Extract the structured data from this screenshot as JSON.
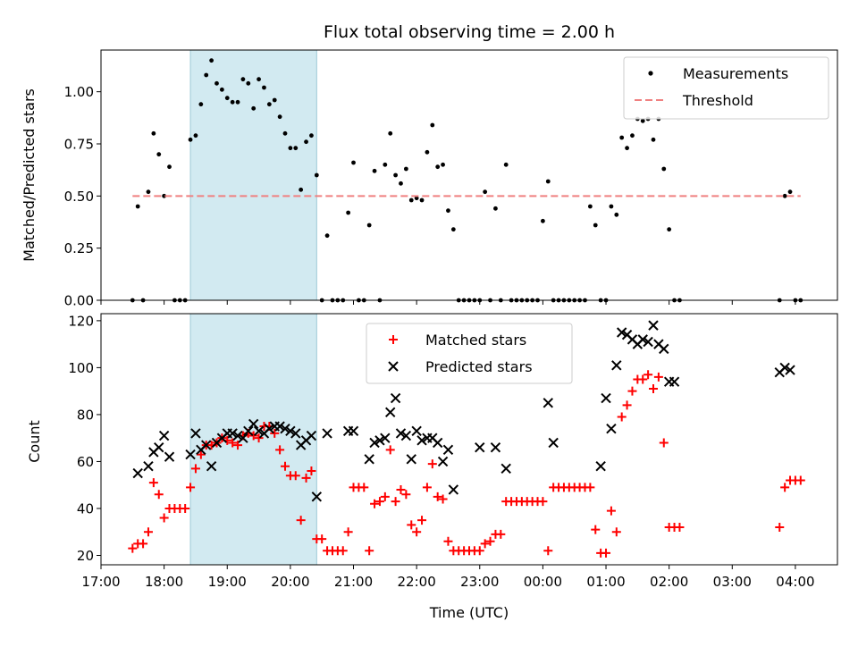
{
  "chart_data": [
    {
      "type": "scatter",
      "title": "Flux total observing time = 2.00 h",
      "xlabel": "",
      "ylabel": "Matched/Predicted stars",
      "ylim": [
        0,
        1.2
      ],
      "xlim": [
        "17:00",
        "04:40"
      ],
      "yticks": [
        "0.00",
        "0.25",
        "0.50",
        "0.75",
        "1.00"
      ],
      "grid": false,
      "legend": "top-right",
      "shaded_region": {
        "from": "18:25",
        "to": "20:25",
        "color": "#add8e6"
      },
      "series": [
        {
          "name": "Measurements",
          "marker": "dot",
          "color": "#000000",
          "x": [
            "17:30",
            "17:35",
            "17:40",
            "17:45",
            "17:50",
            "17:55",
            "18:00",
            "18:05",
            "18:10",
            "18:15",
            "18:20",
            "18:25",
            "18:30",
            "18:35",
            "18:40",
            "18:45",
            "18:50",
            "18:55",
            "19:00",
            "19:05",
            "19:10",
            "19:15",
            "19:20",
            "19:25",
            "19:30",
            "19:35",
            "19:40",
            "19:45",
            "19:50",
            "19:55",
            "20:00",
            "20:05",
            "20:10",
            "20:15",
            "20:20",
            "20:25",
            "20:30",
            "20:35",
            "20:40",
            "20:45",
            "20:50",
            "20:55",
            "21:00",
            "21:05",
            "21:10",
            "21:15",
            "21:20",
            "21:25",
            "21:30",
            "21:35",
            "21:40",
            "21:45",
            "21:50",
            "21:55",
            "22:00",
            "22:05",
            "22:10",
            "22:15",
            "22:20",
            "22:25",
            "22:30",
            "22:35",
            "22:40",
            "22:45",
            "22:50",
            "22:55",
            "23:00",
            "23:05",
            "23:10",
            "23:15",
            "23:20",
            "23:25",
            "23:30",
            "23:35",
            "23:40",
            "23:45",
            "23:50",
            "23:55",
            "00:00",
            "00:05",
            "00:10",
            "00:15",
            "00:20",
            "00:25",
            "00:30",
            "00:35",
            "00:40",
            "00:45",
            "00:50",
            "00:55",
            "01:00",
            "01:05",
            "01:10",
            "01:15",
            "01:20",
            "01:25",
            "01:30",
            "01:35",
            "01:40",
            "01:45",
            "01:50",
            "01:55",
            "02:00",
            "02:05",
            "02:10",
            "03:45",
            "03:50",
            "03:55",
            "04:00",
            "04:05"
          ],
          "y": [
            0,
            0.45,
            0,
            0.52,
            0.8,
            0.7,
            0.5,
            0.64,
            0,
            0,
            0,
            0.77,
            0.79,
            0.94,
            1.08,
            1.15,
            1.04,
            1.01,
            0.97,
            0.95,
            0.95,
            1.06,
            1.04,
            0.92,
            1.06,
            1.02,
            0.94,
            0.96,
            0.88,
            0.8,
            0.73,
            0.73,
            0.53,
            0.76,
            0.79,
            0.6,
            0,
            0.31,
            0,
            0,
            0,
            0.42,
            0.66,
            0,
            0,
            0.36,
            0.62,
            0,
            0.65,
            0.8,
            0.6,
            0.56,
            0.63,
            0.48,
            0.49,
            0.48,
            0.71,
            0.84,
            0.64,
            0.65,
            0.43,
            0.34,
            0,
            0,
            0,
            0,
            0,
            0.52,
            0,
            0.44,
            0,
            0.65,
            0,
            0,
            0,
            0,
            0,
            0,
            0.38,
            0.57,
            0,
            0,
            0,
            0,
            0,
            0,
            0,
            0.45,
            0.36,
            0,
            0,
            0.45,
            0.41,
            0.78,
            0.73,
            0.79,
            0.87,
            0.86,
            0.87,
            0.77,
            0.87,
            0.63,
            0.34,
            0,
            0,
            0,
            0.5,
            0.52,
            0,
            0
          ]
        },
        {
          "name": "Threshold",
          "type": "line",
          "style": "dashed",
          "color": "#f08080",
          "x": [
            "17:30",
            "04:05"
          ],
          "y": [
            0.5,
            0.5
          ]
        }
      ]
    },
    {
      "type": "scatter",
      "title": "",
      "xlabel": "Time (UTC)",
      "ylabel": "Count",
      "ylim": [
        16,
        123
      ],
      "xlim": [
        "17:00",
        "04:40"
      ],
      "yticks": [
        "20",
        "40",
        "60",
        "80",
        "100",
        "120"
      ],
      "xticks": [
        "17:00",
        "18:00",
        "19:00",
        "20:00",
        "21:00",
        "22:00",
        "23:00",
        "00:00",
        "01:00",
        "02:00",
        "03:00",
        "04:00"
      ],
      "grid": false,
      "legend": "top-center",
      "shaded_region": {
        "from": "18:25",
        "to": "20:25",
        "color": "#add8e6"
      },
      "series": [
        {
          "name": "Matched stars",
          "marker": "plus",
          "color": "#ff0000",
          "x": [
            "17:30",
            "17:35",
            "17:40",
            "17:45",
            "17:50",
            "17:55",
            "18:00",
            "18:05",
            "18:10",
            "18:15",
            "18:20",
            "18:25",
            "18:30",
            "18:35",
            "18:40",
            "18:45",
            "18:50",
            "18:55",
            "19:00",
            "19:05",
            "19:10",
            "19:15",
            "19:20",
            "19:25",
            "19:30",
            "19:35",
            "19:40",
            "19:45",
            "19:50",
            "19:55",
            "20:00",
            "20:05",
            "20:10",
            "20:15",
            "20:20",
            "20:25",
            "20:30",
            "20:35",
            "20:40",
            "20:45",
            "20:50",
            "20:55",
            "21:00",
            "21:05",
            "21:10",
            "21:15",
            "21:20",
            "21:25",
            "21:30",
            "21:35",
            "21:40",
            "21:45",
            "21:50",
            "21:55",
            "22:00",
            "22:05",
            "22:10",
            "22:15",
            "22:20",
            "22:25",
            "22:30",
            "22:35",
            "22:40",
            "22:45",
            "22:50",
            "22:55",
            "23:00",
            "23:05",
            "23:10",
            "23:15",
            "23:20",
            "23:25",
            "23:30",
            "23:35",
            "23:40",
            "23:45",
            "23:50",
            "23:55",
            "00:00",
            "00:05",
            "00:10",
            "00:15",
            "00:20",
            "00:25",
            "00:30",
            "00:35",
            "00:40",
            "00:45",
            "00:50",
            "00:55",
            "01:00",
            "01:05",
            "01:10",
            "01:15",
            "01:20",
            "01:25",
            "01:30",
            "01:35",
            "01:40",
            "01:45",
            "01:50",
            "01:55",
            "02:00",
            "02:05",
            "02:10",
            "03:45",
            "03:50",
            "03:55",
            "04:00",
            "04:05"
          ],
          "y": [
            23,
            25,
            25,
            30,
            51,
            46,
            36,
            40,
            40,
            40,
            40,
            49,
            57,
            63,
            67,
            67,
            68,
            70,
            69,
            68,
            67,
            71,
            72,
            71,
            70,
            75,
            75,
            72,
            65,
            58,
            54,
            54,
            35,
            53,
            56,
            27,
            27,
            22,
            22,
            22,
            22,
            30,
            49,
            49,
            49,
            22,
            42,
            43,
            45,
            65,
            43,
            48,
            46,
            33,
            30,
            35,
            49,
            59,
            45,
            44,
            26,
            22,
            22,
            22,
            22,
            22,
            22,
            25,
            26,
            29,
            29,
            43,
            43,
            43,
            43,
            43,
            43,
            43,
            43,
            22,
            49,
            49,
            49,
            49,
            49,
            49,
            49,
            49,
            31,
            21,
            21,
            39,
            30,
            79,
            84,
            90,
            95,
            95,
            97,
            91,
            96,
            68,
            32,
            32,
            32,
            32,
            49,
            52,
            52,
            52
          ]
        },
        {
          "name": "Predicted stars",
          "marker": "x",
          "color": "#000000",
          "x": [
            "17:35",
            "17:45",
            "17:50",
            "17:55",
            "18:00",
            "18:05",
            "18:25",
            "18:30",
            "18:35",
            "18:40",
            "18:45",
            "18:50",
            "18:55",
            "19:00",
            "19:05",
            "19:10",
            "19:15",
            "19:20",
            "19:25",
            "19:30",
            "19:35",
            "19:40",
            "19:45",
            "19:50",
            "19:55",
            "20:00",
            "20:05",
            "20:10",
            "20:15",
            "20:20",
            "20:25",
            "20:35",
            "20:55",
            "21:00",
            "21:15",
            "21:20",
            "21:25",
            "21:30",
            "21:35",
            "21:40",
            "21:45",
            "21:50",
            "21:55",
            "22:00",
            "22:05",
            "22:10",
            "22:15",
            "22:20",
            "22:25",
            "22:30",
            "22:35",
            "23:00",
            "23:15",
            "23:25",
            "00:05",
            "00:10",
            "00:55",
            "01:00",
            "01:05",
            "01:10",
            "01:15",
            "01:20",
            "01:25",
            "01:30",
            "01:35",
            "01:40",
            "01:45",
            "01:50",
            "01:55",
            "02:00",
            "02:05",
            "03:45",
            "03:50",
            "03:55"
          ],
          "y": [
            55,
            58,
            64,
            66,
            71,
            62,
            63,
            72,
            65,
            67,
            58,
            68,
            70,
            72,
            72,
            71,
            70,
            73,
            76,
            73,
            72,
            74,
            75,
            75,
            74,
            73,
            72,
            67,
            69,
            71,
            45,
            72,
            73,
            73,
            61,
            68,
            69,
            70,
            81,
            87,
            72,
            71,
            61,
            73,
            69,
            70,
            70,
            68,
            60,
            65,
            48,
            66,
            66,
            57,
            85,
            68,
            58,
            87,
            74,
            101,
            115,
            114,
            112,
            110,
            112,
            111,
            118,
            110,
            108,
            94,
            94,
            98,
            100,
            99
          ]
        }
      ]
    }
  ]
}
